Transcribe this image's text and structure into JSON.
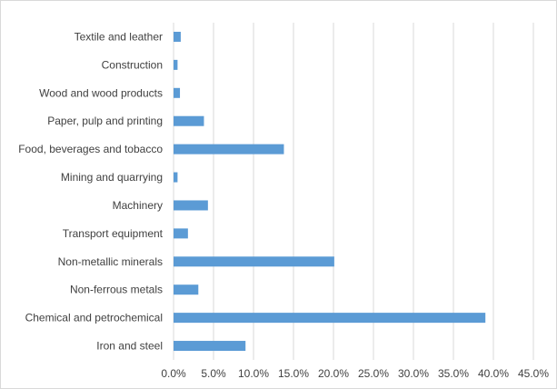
{
  "colors": {
    "bar": "#5b9bd5",
    "grid": "#d9d9d9",
    "text": "#404040"
  },
  "chart_data": {
    "type": "bar",
    "orientation": "horizontal",
    "title": "",
    "xlabel": "",
    "ylabel": "",
    "xlim": [
      0,
      0.45
    ],
    "grid": true,
    "legend": "none",
    "categories": [
      "Textile and leather",
      "Construction",
      "Wood and wood products",
      "Paper, pulp and printing",
      "Food, beverages and tobacco",
      "Mining and quarrying",
      "Machinery",
      "Transport equipment",
      "Non-metallic minerals",
      "Non-ferrous metals",
      "Chemical and petrochemical",
      "Iron and steel"
    ],
    "values": [
      0.009,
      0.005,
      0.008,
      0.038,
      0.138,
      0.005,
      0.043,
      0.018,
      0.201,
      0.031,
      0.39,
      0.09
    ],
    "ticks": [
      "0.0%",
      "5.0%",
      "10.0%",
      "15.0%",
      "20.0%",
      "25.0%",
      "30.0%",
      "35.0%",
      "40.0%",
      "45.0%"
    ]
  }
}
